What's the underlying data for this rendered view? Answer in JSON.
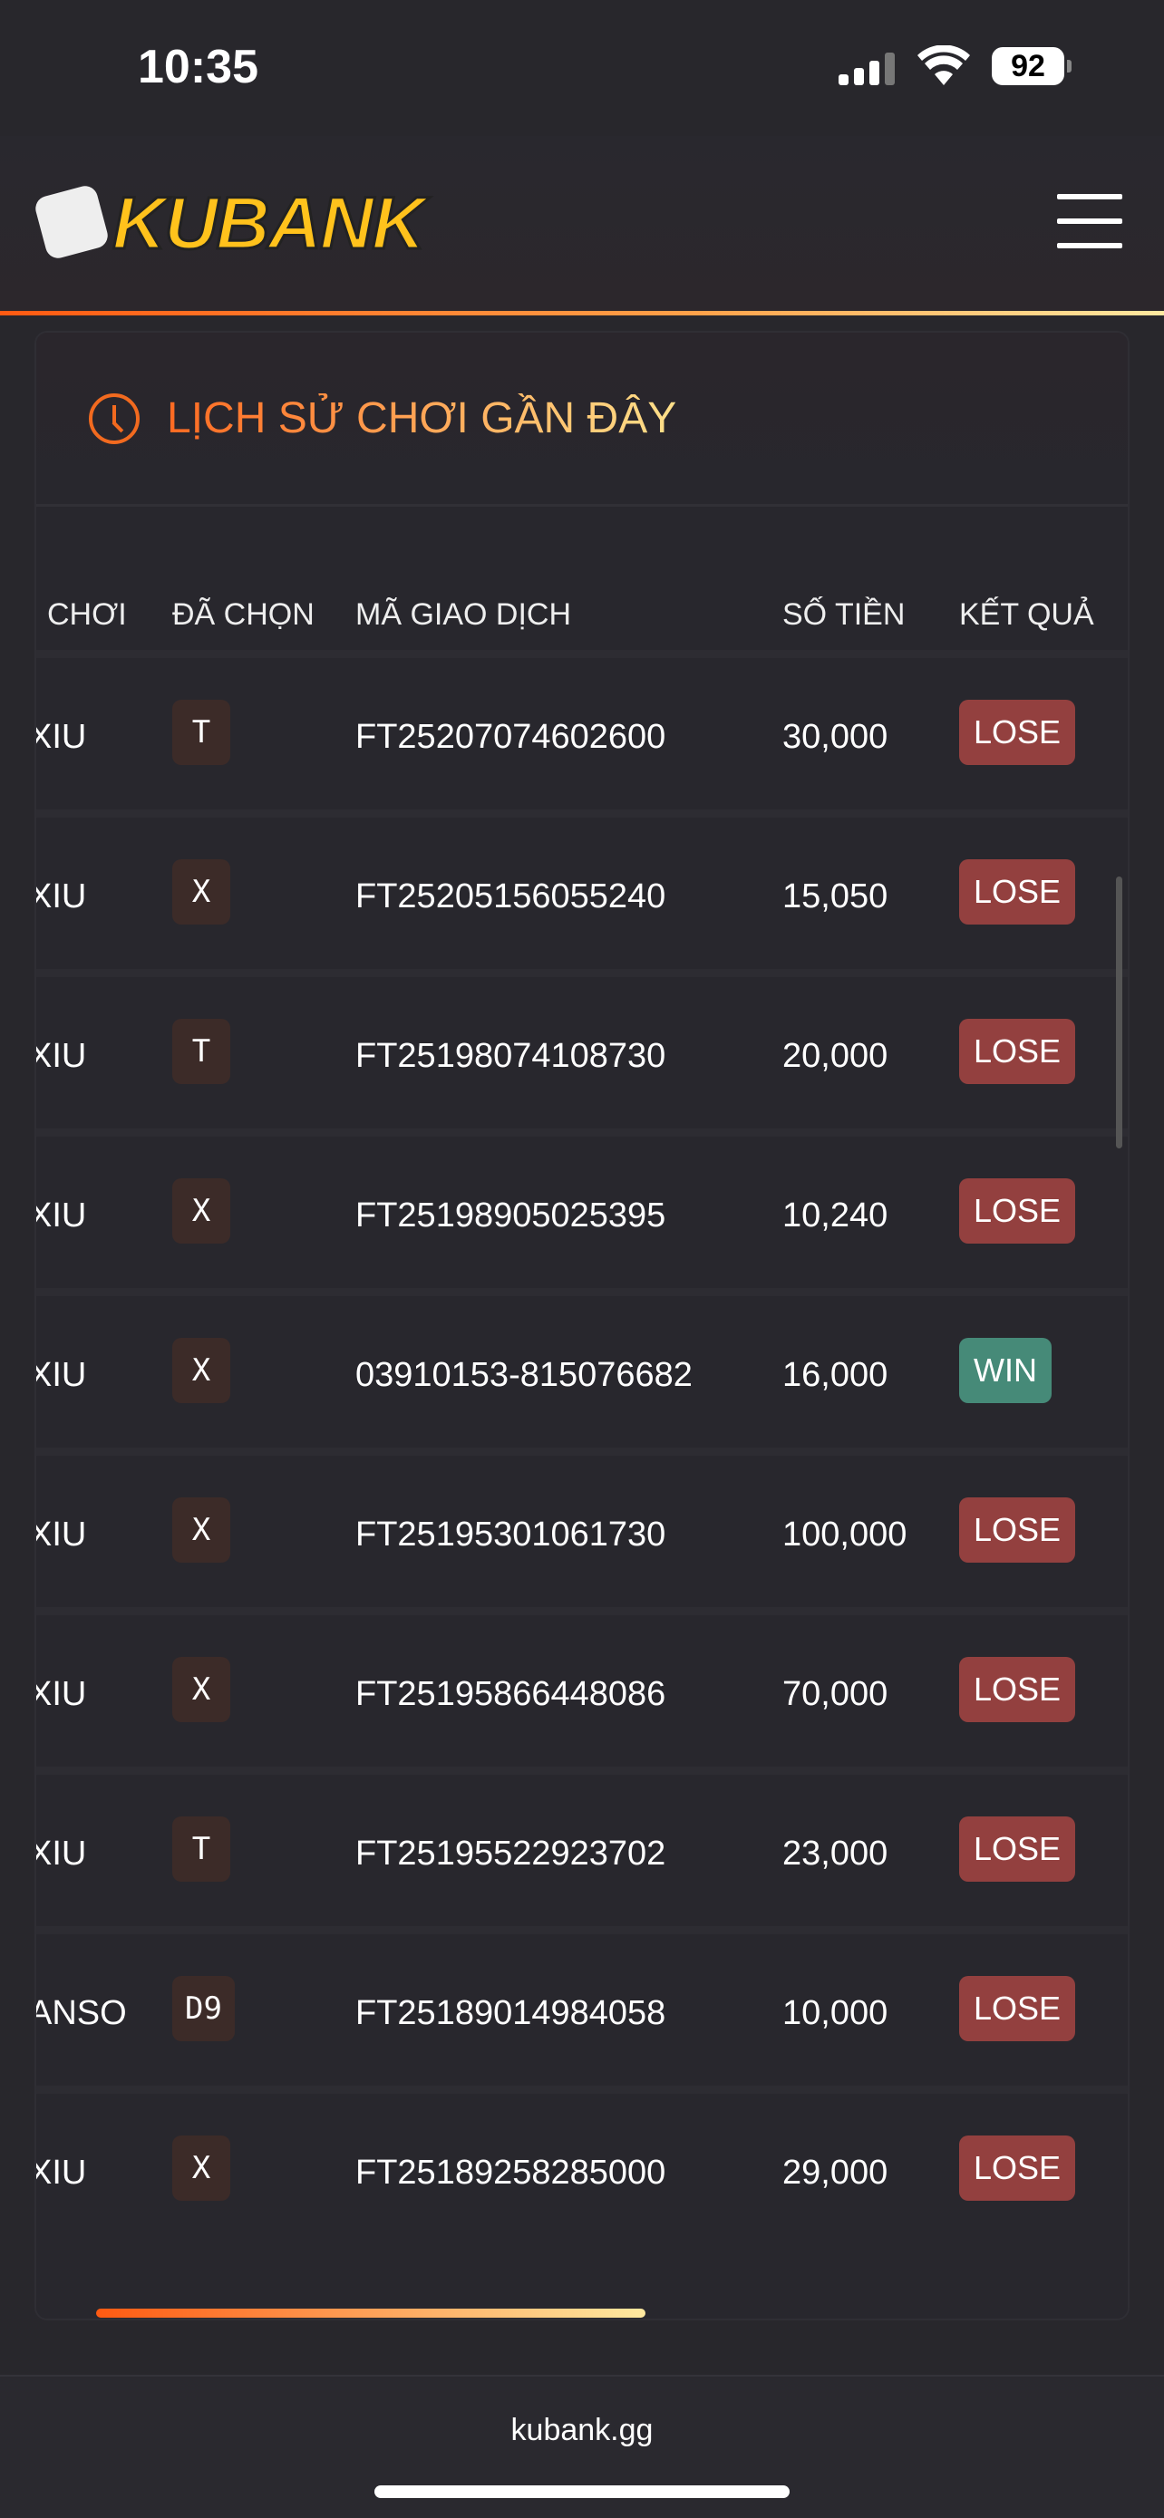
{
  "status": {
    "time": "10:35",
    "battery": "92"
  },
  "header": {
    "logo": "KUBANK",
    "menu_icon": "hamburger-icon"
  },
  "section": {
    "title": "LỊCH SỬ CHƠI GẦN ĐÂY",
    "icon": "clock-icon"
  },
  "columns": [
    "CHƠI",
    "ĐÃ CHỌN",
    "MÃ GIAO DỊCH",
    "SỐ TIỀN",
    "KẾT QUẢ"
  ],
  "rows": [
    {
      "game": "XIU",
      "pick": "T",
      "txn": "FT25207074602600",
      "amount": "30,000",
      "result": "LOSE"
    },
    {
      "game": "XIU",
      "pick": "X",
      "txn": "FT25205156055240",
      "amount": "15,050",
      "result": "LOSE"
    },
    {
      "game": "XIU",
      "pick": "T",
      "txn": "FT25198074108730",
      "amount": "20,000",
      "result": "LOSE"
    },
    {
      "game": "XIU",
      "pick": "X",
      "txn": "FT25198905025395",
      "amount": "10,240",
      "result": "LOSE"
    },
    {
      "game": "XIU",
      "pick": "X",
      "txn": "03910153-815076682",
      "amount": "16,000",
      "result": "WIN"
    },
    {
      "game": "XIU",
      "pick": "X",
      "txn": "FT25195301061730",
      "amount": "100,000",
      "result": "LOSE"
    },
    {
      "game": "XIU",
      "pick": "X",
      "txn": "FT25195866448086",
      "amount": "70,000",
      "result": "LOSE"
    },
    {
      "game": "XIU",
      "pick": "T",
      "txn": "FT25195522923702",
      "amount": "23,000",
      "result": "LOSE"
    },
    {
      "game": "ANSO",
      "pick": "D9",
      "txn": "FT25189014984058",
      "amount": "10,000",
      "result": "LOSE"
    },
    {
      "game": "XIU",
      "pick": "X",
      "txn": "FT25189258285000",
      "amount": "29,000",
      "result": "LOSE"
    }
  ],
  "colors": {
    "win": "#468a78",
    "lose": "#93403f",
    "accent": "#f26a1f"
  },
  "footer": {
    "url": "kubank.gg"
  }
}
